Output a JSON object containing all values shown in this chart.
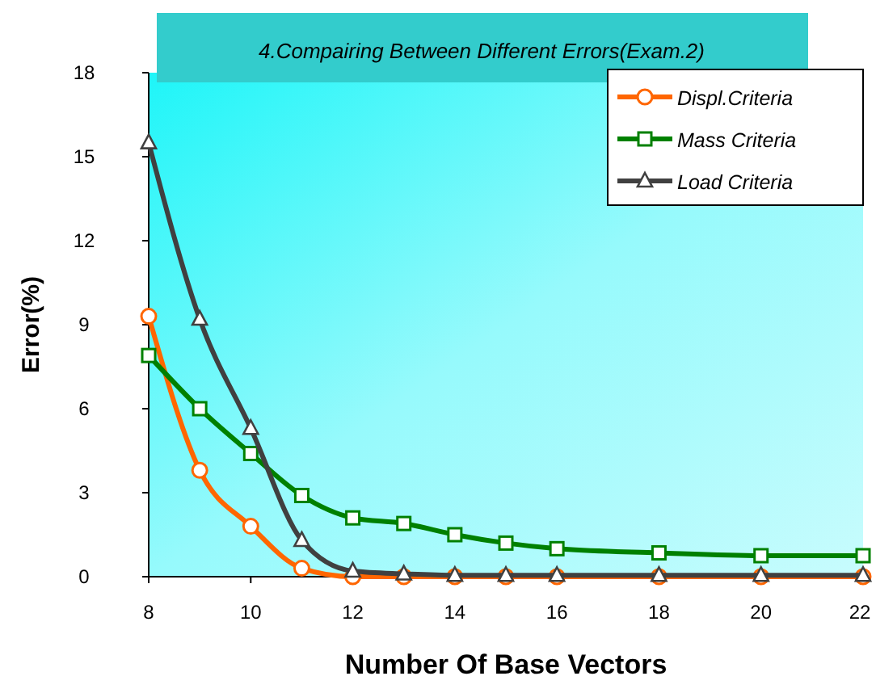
{
  "chart_data": {
    "type": "line",
    "title": "4.Compairing Between Different Errors(Exam.2)",
    "xlabel": "Number Of Base Vectors",
    "ylabel": "Error(%)",
    "x": [
      8,
      9,
      10,
      11,
      12,
      13,
      14,
      15,
      16,
      18,
      20,
      22
    ],
    "series": [
      {
        "name": "Displ.Criteria",
        "color": "#ff6600",
        "marker": "circle",
        "values": [
          9.3,
          3.8,
          1.8,
          0.3,
          0,
          0,
          0,
          0,
          0,
          0,
          0,
          0
        ]
      },
      {
        "name": "Mass Criteria",
        "color": "#008000",
        "marker": "square",
        "values": [
          7.9,
          6.0,
          4.4,
          2.9,
          2.1,
          1.9,
          1.5,
          1.2,
          1.0,
          0.85,
          0.75,
          0.75
        ]
      },
      {
        "name": "Load Criteria",
        "color": "#404040",
        "marker": "triangle",
        "values": [
          15.5,
          9.2,
          5.3,
          1.3,
          0.2,
          0.1,
          0.05,
          0.05,
          0.05,
          0.05,
          0.05,
          0.05
        ]
      }
    ],
    "xlim": [
      8,
      22
    ],
    "xticks": [
      8,
      10,
      12,
      14,
      16,
      18,
      20,
      22
    ],
    "ylim": [
      0,
      18
    ],
    "yticks": [
      0,
      3,
      6,
      9,
      12,
      15,
      18
    ],
    "grid": false,
    "legend": "top right"
  }
}
